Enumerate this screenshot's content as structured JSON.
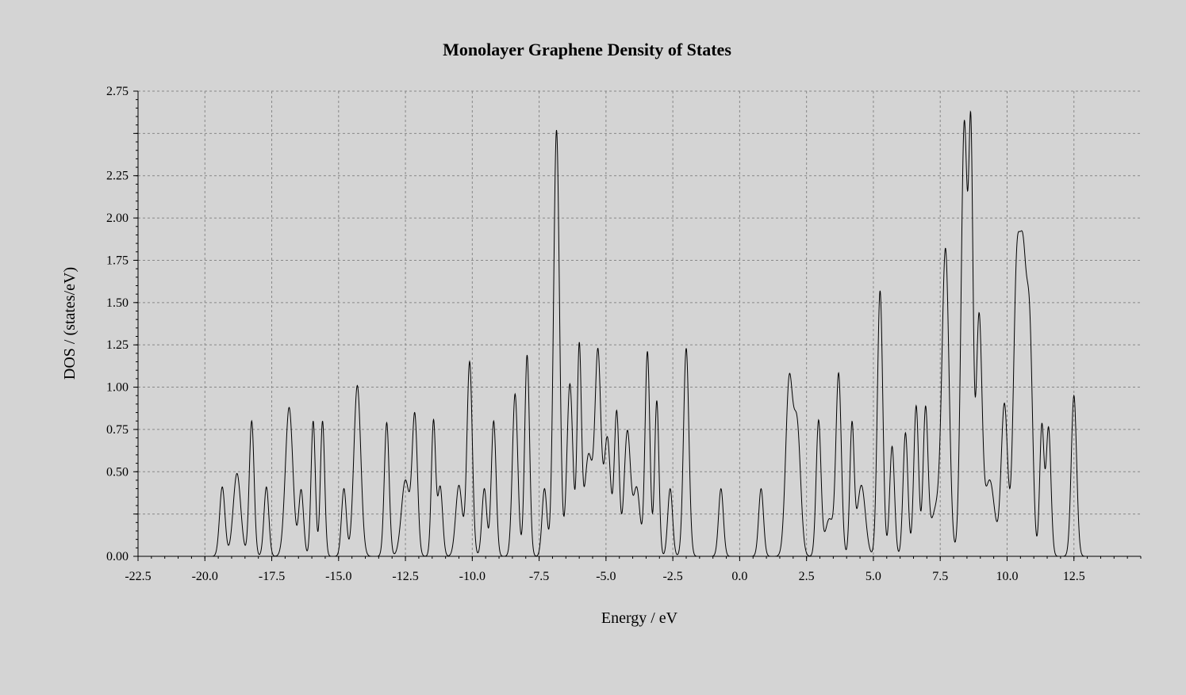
{
  "chart_data": {
    "type": "line",
    "title": "Monolayer Graphene Density of States",
    "xlabel": "Energy / eV",
    "ylabel": "DOS / (states/eV)",
    "xlim": [
      -22.5,
      15.0
    ],
    "ylim": [
      0.0,
      2.75
    ],
    "x_ticks": [
      -22.5,
      -20.0,
      -17.5,
      -15.0,
      -12.5,
      -10.0,
      -7.5,
      -5.0,
      -2.5,
      0.0,
      2.5,
      5.0,
      7.5,
      10.0,
      12.5
    ],
    "x_tick_labels": [
      "-22.5",
      "-20.0",
      "-17.5",
      "-15.0",
      "-12.5",
      "-10.0",
      "-7.5",
      "-5.0",
      "-2.5",
      "0.0",
      "2.5",
      "5.0",
      "7.5",
      "10.0",
      "12.5"
    ],
    "y_ticks": [
      0.0,
      0.25,
      0.5,
      0.75,
      1.0,
      1.25,
      1.5,
      1.75,
      2.0,
      2.25,
      2.5,
      2.75
    ],
    "y_tick_labels": [
      "0.00",
      "",
      "0.50",
      "0.75",
      "1.00",
      "1.25",
      "1.50",
      "1.75",
      "2.00",
      "2.25",
      "",
      "2.75"
    ],
    "grid": true,
    "series": [
      {
        "peaks": [
          [
            -19.35,
            0.41,
            0.1
          ],
          [
            -18.8,
            0.49,
            0.14
          ],
          [
            -18.25,
            0.8,
            0.09
          ],
          [
            -17.7,
            0.41,
            0.09
          ],
          [
            -16.85,
            0.88,
            0.14
          ],
          [
            -16.4,
            0.39,
            0.09
          ],
          [
            -15.95,
            0.8,
            0.08
          ],
          [
            -15.6,
            0.8,
            0.08
          ],
          [
            -14.8,
            0.4,
            0.09
          ],
          [
            -14.3,
            1.01,
            0.13
          ],
          [
            -13.2,
            0.79,
            0.09
          ],
          [
            -12.5,
            0.45,
            0.15
          ],
          [
            -12.15,
            0.82,
            0.1
          ],
          [
            -11.45,
            0.8,
            0.08
          ],
          [
            -11.2,
            0.41,
            0.09
          ],
          [
            -10.5,
            0.42,
            0.12
          ],
          [
            -10.1,
            1.15,
            0.1
          ],
          [
            -9.55,
            0.4,
            0.09
          ],
          [
            -9.2,
            0.8,
            0.09
          ],
          [
            -8.4,
            0.96,
            0.1
          ],
          [
            -7.95,
            1.19,
            0.09
          ],
          [
            -7.3,
            0.4,
            0.09
          ],
          [
            -6.85,
            2.52,
            0.11
          ],
          [
            -6.35,
            1.02,
            0.11
          ],
          [
            -6.0,
            1.22,
            0.08
          ],
          [
            -5.65,
            0.6,
            0.15
          ],
          [
            -5.3,
            1.18,
            0.11
          ],
          [
            -4.95,
            0.7,
            0.12
          ],
          [
            -4.6,
            0.85,
            0.09
          ],
          [
            -4.2,
            0.74,
            0.12
          ],
          [
            -3.85,
            0.4,
            0.12
          ],
          [
            -3.45,
            1.21,
            0.09
          ],
          [
            -3.1,
            0.92,
            0.08
          ],
          [
            -2.6,
            0.4,
            0.09
          ],
          [
            -2.0,
            1.23,
            0.1
          ],
          [
            -0.7,
            0.4,
            0.09
          ],
          [
            0.8,
            0.4,
            0.09
          ],
          [
            1.85,
            1.02,
            0.13
          ],
          [
            2.15,
            0.75,
            0.13
          ],
          [
            2.95,
            0.8,
            0.09
          ],
          [
            3.35,
            0.22,
            0.15
          ],
          [
            3.7,
            1.07,
            0.1
          ],
          [
            4.2,
            0.77,
            0.08
          ],
          [
            4.55,
            0.42,
            0.15
          ],
          [
            5.25,
            1.57,
            0.1
          ],
          [
            5.7,
            0.65,
            0.09
          ],
          [
            6.2,
            0.73,
            0.09
          ],
          [
            6.6,
            0.89,
            0.09
          ],
          [
            6.95,
            0.85,
            0.09
          ],
          [
            7.35,
            0.28,
            0.2
          ],
          [
            7.7,
            1.76,
            0.13
          ],
          [
            8.4,
            2.56,
            0.12
          ],
          [
            8.65,
            2.27,
            0.08
          ],
          [
            8.95,
            1.4,
            0.11
          ],
          [
            9.35,
            0.45,
            0.18
          ],
          [
            9.9,
            0.9,
            0.12
          ],
          [
            10.35,
            1.53,
            0.12
          ],
          [
            10.6,
            1.63,
            0.13
          ],
          [
            10.85,
            1.2,
            0.11
          ],
          [
            11.3,
            0.77,
            0.08
          ],
          [
            11.55,
            0.76,
            0.09
          ],
          [
            12.5,
            0.95,
            0.1
          ]
        ]
      }
    ]
  }
}
